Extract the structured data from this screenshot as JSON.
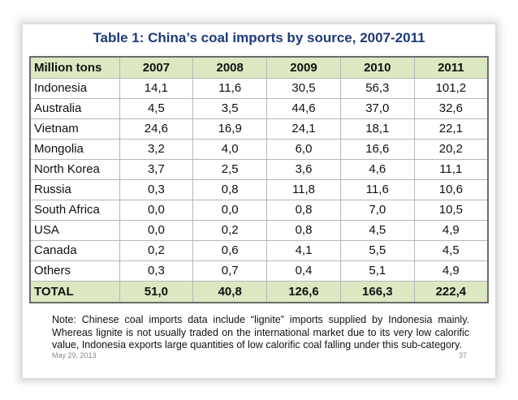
{
  "title": "Table 1: China’s coal imports by source, 2007-2011",
  "table": {
    "header": [
      "Million tons",
      "2007",
      "2008",
      "2009",
      "2010",
      "2011"
    ],
    "rows": [
      [
        "Indonesia",
        "14,1",
        "11,6",
        "30,5",
        "56,3",
        "101,2"
      ],
      [
        "Australia",
        "4,5",
        "3,5",
        "44,6",
        "37,0",
        "32,6"
      ],
      [
        "Vietnam",
        "24,6",
        "16,9",
        "24,1",
        "18,1",
        "22,1"
      ],
      [
        "Mongolia",
        "3,2",
        "4,0",
        "6,0",
        "16,6",
        "20,2"
      ],
      [
        "North Korea",
        "3,7",
        "2,5",
        "3,6",
        "4,6",
        "11,1"
      ],
      [
        "Russia",
        "0,3",
        "0,8",
        "11,8",
        "11,6",
        "10,6"
      ],
      [
        "South Africa",
        "0,0",
        "0,0",
        "0,8",
        "7,0",
        "10,5"
      ],
      [
        "USA",
        "0,0",
        "0,2",
        "0,8",
        "4,5",
        "4,9"
      ],
      [
        "Canada",
        "0,2",
        "0,6",
        "4,1",
        "5,5",
        "4,5"
      ],
      [
        "Others",
        "0,3",
        "0,7",
        "0,4",
        "5,1",
        "4,9"
      ]
    ],
    "total": [
      "TOTAL",
      "51,0",
      "40,8",
      "126,6",
      "166,3",
      "222,4"
    ]
  },
  "note": "Note: Chinese coal imports data include “lignite” imports supplied by Indonesia mainly. Whereas lignite is not usually traded on the international market due to its very low calorific value, Indonesia exports large quantities of low calorific coal falling under this sub-category.",
  "footer": {
    "date": "May 29, 2013",
    "page": "37"
  },
  "colors": {
    "header_bg": "#dce8c2",
    "title": "#1f3a78"
  }
}
